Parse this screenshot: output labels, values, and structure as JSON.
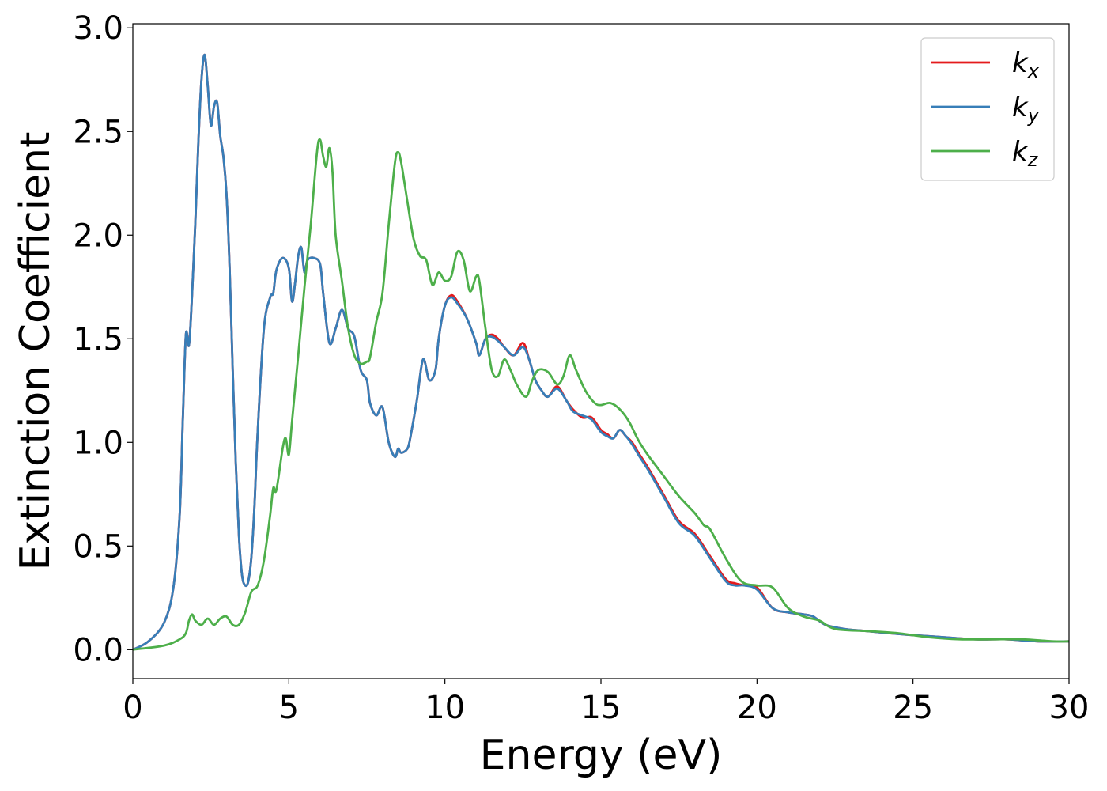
{
  "chart_data": {
    "type": "line",
    "xlabel": "Energy (eV)",
    "ylabel": "Extinction Coefficient",
    "xlim": [
      0,
      30
    ],
    "ylim": [
      -0.14,
      3.02
    ],
    "xticks": [
      0,
      5,
      10,
      15,
      20,
      25,
      30
    ],
    "xtick_labels": [
      "0",
      "5",
      "10",
      "15",
      "20",
      "25",
      "30"
    ],
    "yticks": [
      0.0,
      0.5,
      1.0,
      1.5,
      2.0,
      2.5,
      3.0
    ],
    "ytick_labels": [
      "0.0",
      "0.5",
      "1.0",
      "1.5",
      "2.0",
      "2.5",
      "3.0"
    ],
    "grid": false,
    "legend_position": "top-right",
    "legend": [
      {
        "base": "k",
        "sub": "x",
        "color": "#e41a1c"
      },
      {
        "base": "k",
        "sub": "y",
        "color": "#377eb8"
      },
      {
        "base": "k",
        "sub": "z",
        "color": "#4daf4a"
      }
    ],
    "series": [
      {
        "color": "#e41a1c",
        "x": [
          0,
          0.5,
          1.0,
          1.3,
          1.5,
          1.6,
          1.7,
          1.8,
          1.9,
          2.0,
          2.1,
          2.2,
          2.3,
          2.4,
          2.5,
          2.6,
          2.7,
          2.8,
          2.9,
          3.0,
          3.1,
          3.2,
          3.3,
          3.4,
          3.5,
          3.6,
          3.7,
          3.8,
          3.9,
          4.0,
          4.2,
          4.4,
          4.5,
          4.6,
          4.8,
          5.0,
          5.1,
          5.2,
          5.3,
          5.4,
          5.5,
          5.6,
          5.8,
          6.0,
          6.1,
          6.3,
          6.5,
          6.7,
          6.9,
          7.1,
          7.3,
          7.5,
          7.6,
          7.8,
          8.0,
          8.2,
          8.4,
          8.5,
          8.6,
          8.8,
          8.9,
          9.1,
          9.3,
          9.5,
          9.7,
          9.8,
          10.0,
          10.2,
          10.4,
          10.7,
          11.0,
          11.1,
          11.3,
          11.5,
          11.7,
          11.9,
          12.2,
          12.5,
          12.7,
          12.9,
          13.1,
          13.3,
          13.6,
          13.9,
          14.1,
          14.4,
          14.7,
          15.0,
          15.2,
          15.4,
          15.6,
          15.8,
          16.0,
          16.2,
          16.5,
          17.0,
          17.5,
          18.0,
          18.5,
          19.0,
          19.3,
          19.6,
          20.0,
          20.5,
          21.0,
          21.5,
          21.8,
          22.2,
          22.8,
          23.5,
          24.2,
          25.0,
          26.0,
          27.0,
          28.0,
          29.0,
          30.0
        ],
        "values": [
          0.0,
          0.04,
          0.13,
          0.3,
          0.65,
          1.1,
          1.52,
          1.47,
          1.72,
          2.05,
          2.45,
          2.75,
          2.87,
          2.72,
          2.53,
          2.62,
          2.64,
          2.48,
          2.38,
          2.2,
          1.85,
          1.35,
          0.9,
          0.55,
          0.36,
          0.31,
          0.33,
          0.45,
          0.7,
          1.05,
          1.55,
          1.7,
          1.72,
          1.83,
          1.89,
          1.84,
          1.68,
          1.77,
          1.9,
          1.94,
          1.82,
          1.88,
          1.89,
          1.86,
          1.72,
          1.48,
          1.55,
          1.64,
          1.55,
          1.51,
          1.35,
          1.3,
          1.19,
          1.13,
          1.17,
          1.0,
          0.93,
          0.97,
          0.95,
          0.97,
          1.03,
          1.2,
          1.4,
          1.3,
          1.35,
          1.5,
          1.66,
          1.71,
          1.68,
          1.6,
          1.48,
          1.42,
          1.5,
          1.52,
          1.5,
          1.46,
          1.42,
          1.48,
          1.4,
          1.3,
          1.25,
          1.22,
          1.27,
          1.2,
          1.16,
          1.12,
          1.12,
          1.06,
          1.04,
          1.02,
          1.06,
          1.03,
          1.0,
          0.95,
          0.88,
          0.75,
          0.62,
          0.56,
          0.45,
          0.34,
          0.32,
          0.31,
          0.3,
          0.2,
          0.18,
          0.17,
          0.16,
          0.12,
          0.1,
          0.09,
          0.08,
          0.07,
          0.06,
          0.05,
          0.05,
          0.04,
          0.04
        ]
      },
      {
        "color": "#377eb8",
        "x": [
          0,
          0.5,
          1.0,
          1.3,
          1.5,
          1.6,
          1.7,
          1.8,
          1.9,
          2.0,
          2.1,
          2.2,
          2.3,
          2.4,
          2.5,
          2.6,
          2.7,
          2.8,
          2.9,
          3.0,
          3.1,
          3.2,
          3.3,
          3.4,
          3.5,
          3.6,
          3.7,
          3.8,
          3.9,
          4.0,
          4.2,
          4.4,
          4.5,
          4.6,
          4.8,
          5.0,
          5.1,
          5.2,
          5.3,
          5.4,
          5.5,
          5.6,
          5.8,
          6.0,
          6.1,
          6.3,
          6.5,
          6.7,
          6.9,
          7.1,
          7.3,
          7.5,
          7.6,
          7.8,
          8.0,
          8.2,
          8.4,
          8.5,
          8.6,
          8.8,
          8.9,
          9.1,
          9.3,
          9.5,
          9.7,
          9.8,
          10.0,
          10.2,
          10.4,
          10.7,
          11.0,
          11.1,
          11.3,
          11.5,
          11.7,
          11.9,
          12.2,
          12.5,
          12.7,
          12.9,
          13.1,
          13.3,
          13.6,
          13.9,
          14.1,
          14.4,
          14.7,
          15.0,
          15.2,
          15.4,
          15.6,
          15.8,
          16.0,
          16.2,
          16.5,
          17.0,
          17.5,
          18.0,
          18.5,
          19.0,
          19.3,
          19.6,
          20.0,
          20.5,
          21.0,
          21.5,
          21.8,
          22.2,
          22.8,
          23.5,
          24.2,
          25.0,
          26.0,
          27.0,
          28.0,
          29.0,
          30.0
        ],
        "values": [
          0.0,
          0.04,
          0.13,
          0.3,
          0.65,
          1.1,
          1.52,
          1.47,
          1.72,
          2.05,
          2.45,
          2.75,
          2.87,
          2.72,
          2.53,
          2.62,
          2.64,
          2.48,
          2.38,
          2.2,
          1.85,
          1.35,
          0.9,
          0.55,
          0.36,
          0.31,
          0.33,
          0.45,
          0.7,
          1.05,
          1.55,
          1.7,
          1.72,
          1.83,
          1.89,
          1.84,
          1.68,
          1.77,
          1.9,
          1.94,
          1.82,
          1.88,
          1.89,
          1.86,
          1.72,
          1.48,
          1.55,
          1.64,
          1.55,
          1.51,
          1.35,
          1.3,
          1.19,
          1.13,
          1.17,
          1.0,
          0.93,
          0.97,
          0.95,
          0.97,
          1.03,
          1.2,
          1.4,
          1.3,
          1.35,
          1.5,
          1.66,
          1.7,
          1.67,
          1.6,
          1.48,
          1.42,
          1.5,
          1.51,
          1.49,
          1.46,
          1.42,
          1.46,
          1.4,
          1.3,
          1.25,
          1.22,
          1.26,
          1.2,
          1.15,
          1.13,
          1.11,
          1.05,
          1.03,
          1.02,
          1.06,
          1.03,
          0.99,
          0.94,
          0.87,
          0.74,
          0.61,
          0.55,
          0.44,
          0.33,
          0.31,
          0.31,
          0.29,
          0.2,
          0.18,
          0.17,
          0.16,
          0.12,
          0.1,
          0.09,
          0.08,
          0.07,
          0.06,
          0.05,
          0.05,
          0.04,
          0.04
        ]
      },
      {
        "color": "#4daf4a",
        "x": [
          0,
          1.0,
          1.5,
          1.7,
          1.8,
          1.9,
          2.0,
          2.2,
          2.4,
          2.6,
          2.8,
          3.0,
          3.2,
          3.4,
          3.6,
          3.8,
          4.0,
          4.2,
          4.4,
          4.5,
          4.6,
          4.8,
          4.9,
          5.0,
          5.1,
          5.3,
          5.5,
          5.7,
          5.9,
          6.0,
          6.1,
          6.2,
          6.3,
          6.4,
          6.5,
          6.7,
          6.9,
          7.1,
          7.3,
          7.5,
          7.6,
          7.8,
          8.0,
          8.2,
          8.4,
          8.5,
          8.6,
          8.8,
          9.0,
          9.2,
          9.4,
          9.6,
          9.8,
          10.0,
          10.2,
          10.4,
          10.6,
          10.8,
          11.0,
          11.1,
          11.3,
          11.5,
          11.7,
          11.9,
          12.1,
          12.3,
          12.6,
          12.8,
          13.0,
          13.3,
          13.6,
          13.8,
          14.0,
          14.2,
          14.5,
          14.8,
          15.0,
          15.3,
          15.6,
          15.9,
          16.2,
          16.5,
          17.0,
          17.5,
          18.0,
          18.3,
          18.5,
          19.0,
          19.5,
          20.0,
          20.5,
          21.0,
          21.5,
          22.0,
          22.5,
          23.5,
          24.5,
          25.5,
          26.5,
          27.5,
          28.5,
          29.5,
          30.0
        ],
        "values": [
          0.0,
          0.02,
          0.05,
          0.08,
          0.14,
          0.17,
          0.14,
          0.12,
          0.15,
          0.12,
          0.15,
          0.16,
          0.12,
          0.12,
          0.18,
          0.28,
          0.31,
          0.43,
          0.65,
          0.78,
          0.77,
          0.97,
          1.02,
          0.94,
          1.1,
          1.42,
          1.75,
          2.05,
          2.4,
          2.46,
          2.38,
          2.33,
          2.42,
          2.3,
          2.0,
          1.78,
          1.55,
          1.42,
          1.38,
          1.39,
          1.41,
          1.58,
          1.72,
          2.05,
          2.35,
          2.4,
          2.35,
          2.16,
          1.98,
          1.9,
          1.88,
          1.76,
          1.82,
          1.78,
          1.8,
          1.92,
          1.88,
          1.73,
          1.8,
          1.78,
          1.55,
          1.35,
          1.32,
          1.4,
          1.35,
          1.28,
          1.22,
          1.3,
          1.35,
          1.34,
          1.28,
          1.32,
          1.42,
          1.35,
          1.25,
          1.19,
          1.18,
          1.19,
          1.16,
          1.1,
          1.01,
          0.94,
          0.84,
          0.74,
          0.66,
          0.6,
          0.58,
          0.44,
          0.33,
          0.31,
          0.3,
          0.2,
          0.16,
          0.14,
          0.1,
          0.09,
          0.08,
          0.06,
          0.05,
          0.05,
          0.05,
          0.04,
          0.04
        ]
      }
    ]
  }
}
